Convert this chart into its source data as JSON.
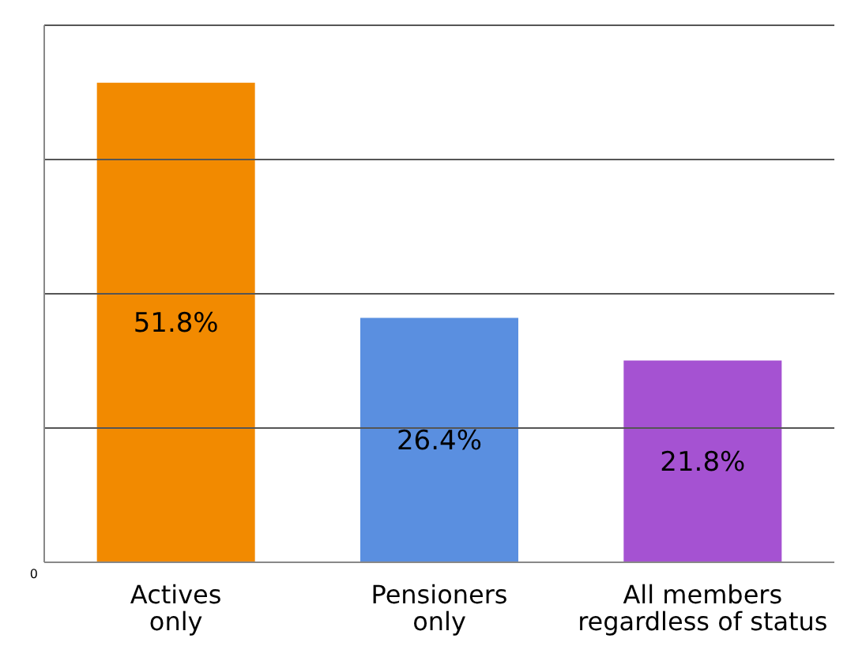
{
  "chart_data": {
    "type": "bar",
    "categories": [
      "Actives only",
      "Pensioners only",
      "All members regardless of status"
    ],
    "values": [
      51.8,
      26.4,
      21.8
    ],
    "colors": [
      "#f28a00",
      "#5a8fe0",
      "#a552d2"
    ],
    "value_labels": [
      "51.8%",
      "26.4%",
      "21.8%"
    ],
    "annotations": [
      "0"
    ],
    "grid": "y"
  }
}
